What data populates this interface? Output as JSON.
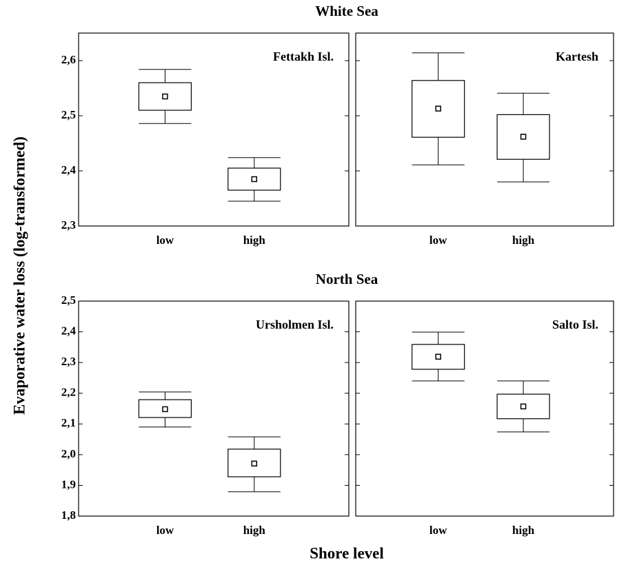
{
  "figure": {
    "row_titles": [
      "White Sea",
      "North Sea"
    ],
    "ylabel": "Evaporative water loss (log-transformed)",
    "xlabel": "Shore level"
  },
  "chart_data": [
    {
      "type": "box",
      "title": "Fettakh Isl.",
      "categories": [
        "low",
        "high"
      ],
      "whisker_high": [
        2.584,
        2.424
      ],
      "box_high": [
        2.56,
        2.405
      ],
      "mean": [
        2.535,
        2.385
      ],
      "box_low": [
        2.51,
        2.365
      ],
      "whisker_low": [
        2.486,
        2.345
      ],
      "ylim": [
        2.3,
        2.65
      ],
      "yticks": [
        {
          "value": 2.3,
          "label": "2,3"
        },
        {
          "value": 2.4,
          "label": "2,4"
        },
        {
          "value": 2.5,
          "label": "2,5"
        },
        {
          "value": 2.6,
          "label": "2,6"
        }
      ]
    },
    {
      "type": "box",
      "title": "Kartesh",
      "categories": [
        "low",
        "high"
      ],
      "whisker_high": [
        2.614,
        2.541
      ],
      "box_high": [
        2.564,
        2.502
      ],
      "mean": [
        2.513,
        2.462
      ],
      "box_low": [
        2.461,
        2.421
      ],
      "whisker_low": [
        2.411,
        2.38
      ],
      "ylim": [
        2.3,
        2.65
      ],
      "yticks": [
        2.3,
        2.4,
        2.5,
        2.6
      ]
    },
    {
      "type": "box",
      "title": "Ursholmen Isl.",
      "categories": [
        "low",
        "high"
      ],
      "whisker_high": [
        2.204,
        2.058
      ],
      "box_high": [
        2.179,
        2.018
      ],
      "mean": [
        2.148,
        1.971
      ],
      "box_low": [
        2.121,
        1.928
      ],
      "whisker_low": [
        2.09,
        1.879
      ],
      "ylim": [
        1.8,
        2.5
      ],
      "yticks": [
        {
          "value": 1.8,
          "label": "1,8"
        },
        {
          "value": 1.9,
          "label": "1,9"
        },
        {
          "value": 2.0,
          "label": "2,0"
        },
        {
          "value": 2.1,
          "label": "2,1"
        },
        {
          "value": 2.2,
          "label": "2,2"
        },
        {
          "value": 2.3,
          "label": "2,3"
        },
        {
          "value": 2.4,
          "label": "2,4"
        },
        {
          "value": 2.5,
          "label": "2,5"
        }
      ]
    },
    {
      "type": "box",
      "title": "Salto Isl.",
      "categories": [
        "low",
        "high"
      ],
      "whisker_high": [
        2.399,
        2.24
      ],
      "box_high": [
        2.359,
        2.197
      ],
      "mean": [
        2.319,
        2.157
      ],
      "box_low": [
        2.278,
        2.117
      ],
      "whisker_low": [
        2.24,
        2.074
      ],
      "ylim": [
        1.8,
        2.5
      ],
      "yticks": [
        1.8,
        1.9,
        2.0,
        2.1,
        2.2,
        2.3,
        2.4,
        2.5
      ]
    }
  ]
}
